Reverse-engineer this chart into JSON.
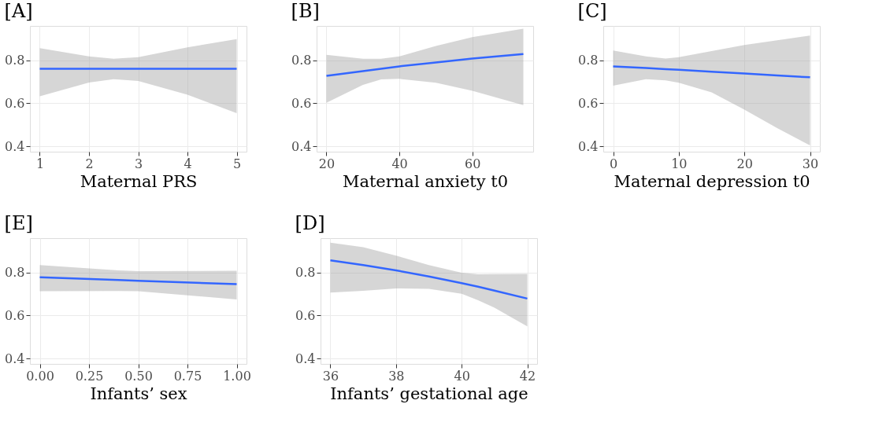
{
  "chart_data": [
    {
      "type": "line",
      "title": "[A]",
      "xlabel": "Maternal PRS",
      "x": [
        1,
        2,
        2.5,
        3,
        4,
        5
      ],
      "series": [
        {
          "color": "#3366ff",
          "values": [
            0.761,
            0.761,
            0.761,
            0.761,
            0.761,
            0.761
          ],
          "lower": [
            0.633,
            0.697,
            0.712,
            0.704,
            0.64,
            0.554
          ],
          "upper": [
            0.857,
            0.818,
            0.807,
            0.815,
            0.86,
            0.899
          ]
        }
      ],
      "xlim": [
        0.8,
        5.2
      ],
      "xticks": [
        1,
        2,
        3,
        4,
        5
      ],
      "ylim": [
        0.375,
        0.96
      ],
      "yticks": [
        0.4,
        0.6,
        0.8
      ],
      "grid": true
    },
    {
      "type": "line",
      "title": "[B]",
      "xlabel": "Maternal anxiety t0",
      "x": [
        20,
        30,
        35,
        40,
        50,
        60,
        74
      ],
      "series": [
        {
          "color": "#3366ff",
          "values": [
            0.728,
            0.75,
            0.761,
            0.772,
            0.79,
            0.808,
            0.829
          ],
          "lower": [
            0.603,
            0.686,
            0.711,
            0.714,
            0.696,
            0.658,
            0.592
          ],
          "upper": [
            0.826,
            0.807,
            0.807,
            0.818,
            0.867,
            0.908,
            0.947
          ]
        }
      ],
      "xlim": [
        17.3,
        76.7
      ],
      "xticks": [
        20,
        40,
        60
      ],
      "ylim": [
        0.375,
        0.96
      ],
      "yticks": [
        0.4,
        0.6,
        0.8
      ],
      "grid": true
    },
    {
      "type": "line",
      "title": "[C]",
      "xlabel": "Maternal depression t0",
      "x": [
        0,
        5,
        8,
        10,
        15,
        20,
        25,
        30
      ],
      "series": [
        {
          "color": "#3366ff",
          "values": [
            0.772,
            0.764,
            0.759,
            0.756,
            0.747,
            0.739,
            0.73,
            0.721
          ],
          "lower": [
            0.682,
            0.712,
            0.707,
            0.696,
            0.651,
            0.571,
            0.485,
            0.404
          ],
          "upper": [
            0.846,
            0.818,
            0.808,
            0.815,
            0.843,
            0.871,
            0.893,
            0.915
          ]
        }
      ],
      "xlim": [
        -1.5,
        31.5
      ],
      "xticks": [
        0,
        10,
        20,
        30
      ],
      "ylim": [
        0.375,
        0.96
      ],
      "yticks": [
        0.4,
        0.6,
        0.8
      ],
      "grid": true
    },
    {
      "type": "line",
      "title": "[E]",
      "xlabel": "Infants’ sex",
      "x": [
        0,
        0.4,
        0.5,
        1
      ],
      "series": [
        {
          "color": "#3366ff",
          "values": [
            0.778,
            0.765,
            0.762,
            0.746
          ],
          "lower": [
            0.713,
            0.714,
            0.713,
            0.675
          ],
          "upper": [
            0.835,
            0.81,
            0.806,
            0.808
          ]
        }
      ],
      "xlim": [
        -0.05,
        1.05
      ],
      "xticks": [
        {
          "value": 0,
          "label": "0.00"
        },
        0.25,
        {
          "value": 0.5,
          "label": "0.50"
        },
        0.75,
        {
          "value": 1,
          "label": "1.00"
        }
      ],
      "ylim": [
        0.375,
        0.96
      ],
      "yticks": [
        0.4,
        0.6,
        0.8
      ],
      "grid": true
    },
    {
      "type": "line",
      "title": "[D]",
      "xlabel": "Infants’ gestational age",
      "x": [
        36,
        37,
        38,
        39,
        40,
        40.5,
        41,
        42
      ],
      "series": [
        {
          "color": "#3366ff",
          "values": [
            0.857,
            0.835,
            0.81,
            0.782,
            0.751,
            0.734,
            0.716,
            0.679
          ],
          "lower": [
            0.707,
            0.715,
            0.726,
            0.724,
            0.701,
            0.671,
            0.636,
            0.55
          ],
          "upper": [
            0.939,
            0.918,
            0.879,
            0.835,
            0.799,
            0.792,
            0.793,
            0.794
          ]
        }
      ],
      "xlim": [
        35.7,
        42.3
      ],
      "xticks": [
        36,
        38,
        40,
        42
      ],
      "ylim": [
        0.375,
        0.96
      ],
      "yticks": [
        0.4,
        0.6,
        0.8
      ],
      "grid": true
    }
  ]
}
